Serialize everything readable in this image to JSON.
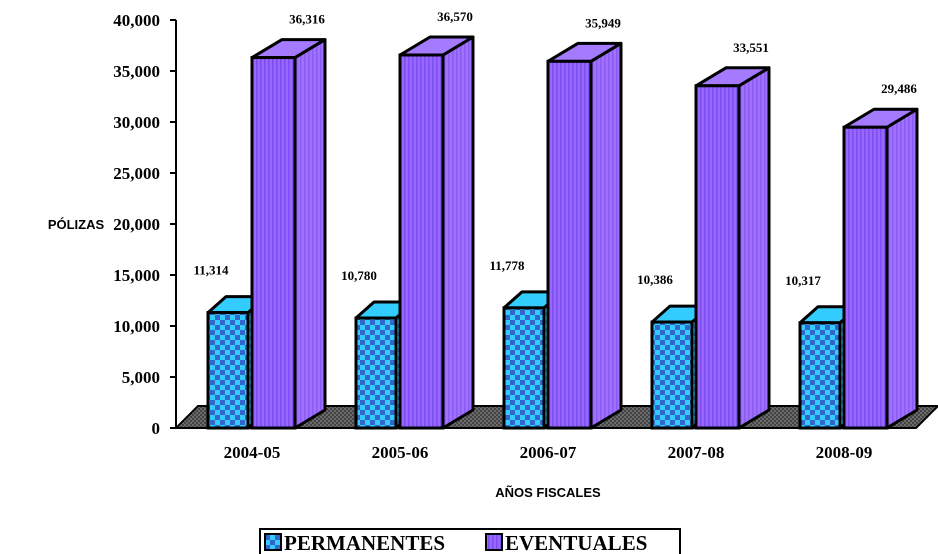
{
  "chart_data": {
    "type": "bar",
    "categories": [
      "2004-05",
      "2005-06",
      "2006-07",
      "2007-08",
      "2008-09"
    ],
    "series": [
      {
        "name": "PERMANENTES",
        "values": [
          11314,
          10780,
          11778,
          10386,
          10317
        ],
        "labels": [
          "11,314",
          "10,780",
          "11,778",
          "10,386",
          "10,317"
        ]
      },
      {
        "name": "EVENTUALES",
        "values": [
          36316,
          36570,
          35949,
          33551,
          29486
        ],
        "labels": [
          "36,316",
          "36,570",
          "35,949",
          "33,551",
          "29,486"
        ]
      }
    ],
    "xlabel": "AÑOS FISCALES",
    "ylabel": "PÓLIZAS",
    "ylim": [
      0,
      40000
    ],
    "yticks": [
      0,
      5000,
      10000,
      15000,
      20000,
      25000,
      30000,
      35000,
      40000
    ],
    "ytick_labels": [
      "0",
      "5,000",
      "10,000",
      "15,000",
      "20,000",
      "25,000",
      "30,000",
      "35,000",
      "40,000"
    ],
    "legend": "bottom-center",
    "grid": false,
    "three_d": true,
    "colors": {
      "permanentes": "#33CCFF",
      "permanentes_pattern": "#3366CC",
      "eventuales": "#9966FF",
      "eventuales_stripe": "#7744EE",
      "floor": "#333333"
    }
  }
}
